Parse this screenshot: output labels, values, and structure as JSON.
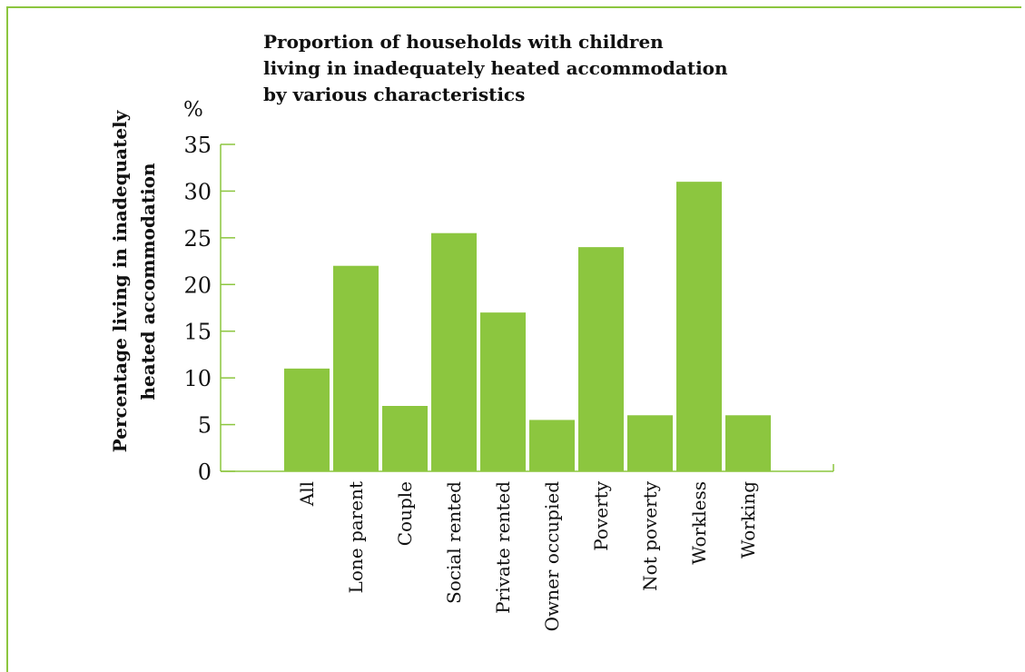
{
  "chart_data": {
    "type": "bar",
    "title_lines": [
      "Proportion of households with children",
      "living in inadequately heated accommodation",
      "by various characteristics"
    ],
    "unit_label": "%",
    "ylabel_lines": [
      "Percentage living in inadequately",
      "heated accommodation"
    ],
    "xlabel": "",
    "categories": [
      "All",
      "Lone parent",
      "Couple",
      "Social rented",
      "Private rented",
      "Owner occupied",
      "Poverty",
      "Not poverty",
      "Workless",
      "Working"
    ],
    "values": [
      11,
      22,
      7,
      25.5,
      17,
      5.5,
      24,
      6,
      31,
      6
    ],
    "ylim": [
      0,
      35
    ],
    "yticks": [
      0,
      5,
      10,
      15,
      20,
      25,
      30,
      35
    ],
    "grid": false,
    "legend": "none",
    "bar_color": "#8cc63f",
    "axis_color": "#8cc63f"
  }
}
